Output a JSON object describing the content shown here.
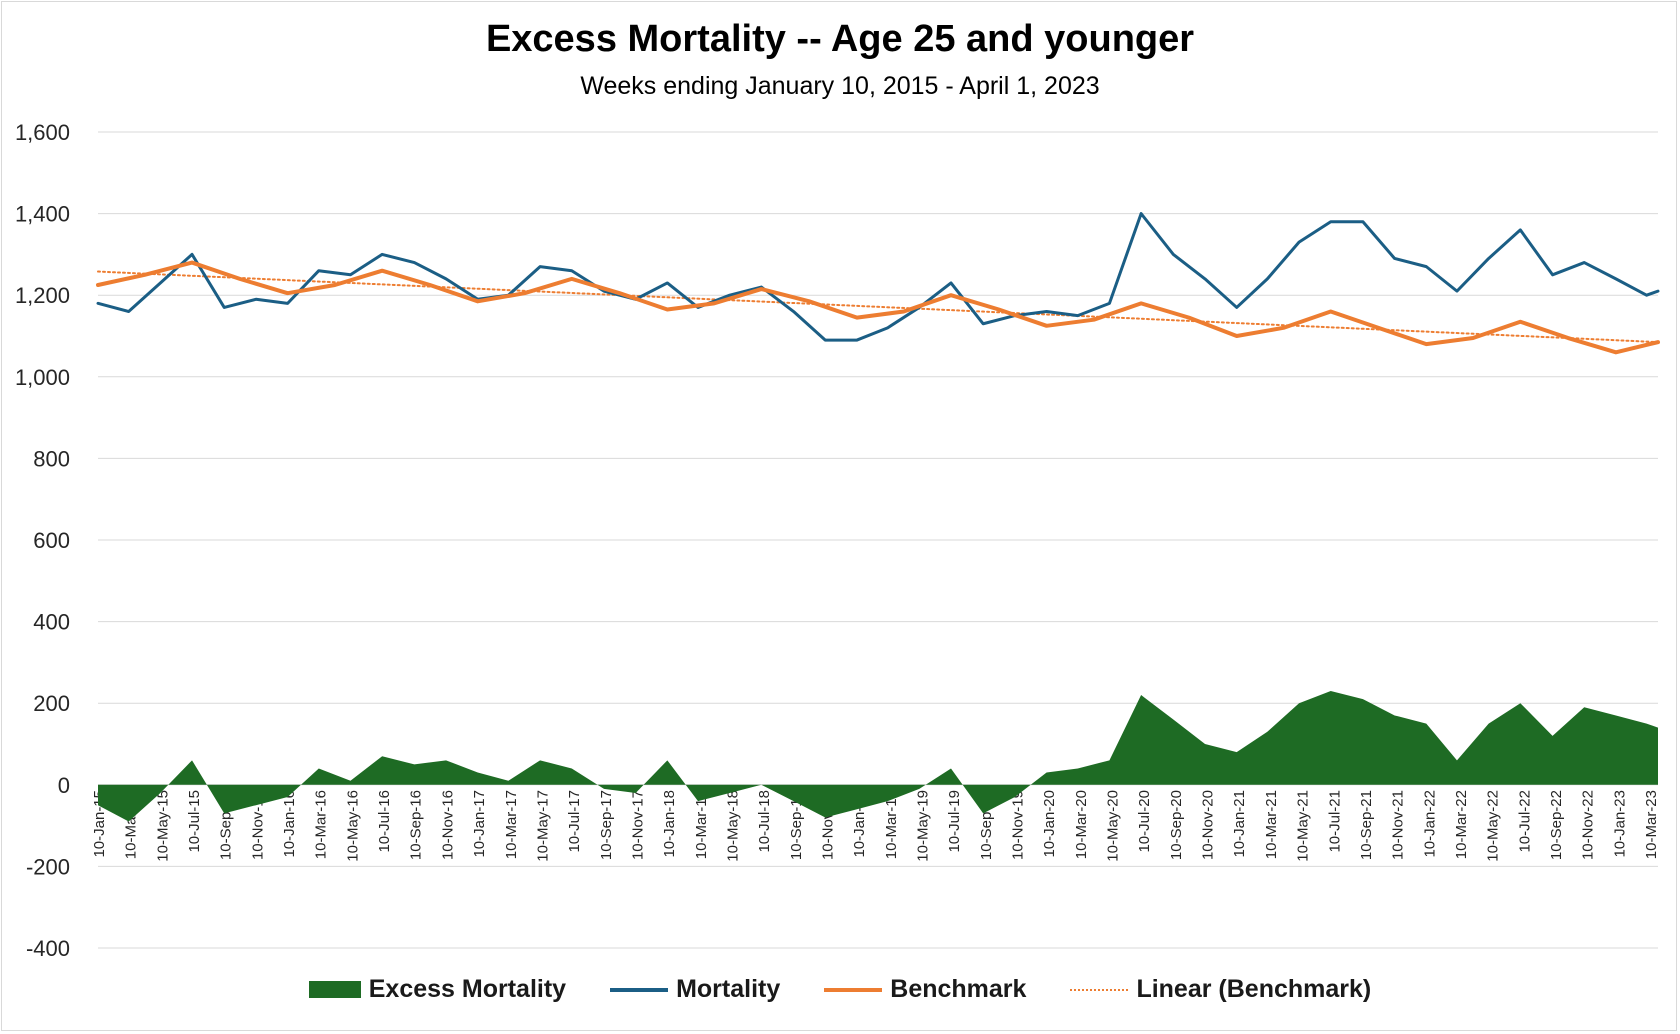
{
  "chart_data": {
    "type": "line",
    "title": "Excess Mortality -- Age 25 and younger",
    "subtitle": "Weeks ending January 10, 2015 - April 1, 2023",
    "ylim": [
      -400,
      1600
    ],
    "y_ticks": [
      "1,600",
      "1,400",
      "1,200",
      "1,000",
      "800",
      "600",
      "400",
      "200",
      "0",
      "-200",
      "-400"
    ],
    "y_tick_values": [
      1600,
      1400,
      1200,
      1000,
      800,
      600,
      400,
      200,
      0,
      -200,
      -400
    ],
    "grid": true,
    "legend_position": "bottom",
    "x_tick_labels": [
      "10-Jan-15",
      "10-Mar-15",
      "10-May-15",
      "10-Jul-15",
      "10-Sep-15",
      "10-Nov-15",
      "10-Jan-16",
      "10-Mar-16",
      "10-May-16",
      "10-Jul-16",
      "10-Sep-16",
      "10-Nov-16",
      "10-Jan-17",
      "10-Mar-17",
      "10-May-17",
      "10-Jul-17",
      "10-Sep-17",
      "10-Nov-17",
      "10-Jan-18",
      "10-Mar-18",
      "10-May-18",
      "10-Jul-18",
      "10-Sep-18",
      "10-Nov-18",
      "10-Jan-19",
      "10-Mar-19",
      "10-May-19",
      "10-Jul-19",
      "10-Sep-19",
      "10-Nov-19",
      "10-Jan-20",
      "10-Mar-20",
      "10-May-20",
      "10-Jul-20",
      "10-Sep-20",
      "10-Nov-20",
      "10-Jan-21",
      "10-Mar-21",
      "10-May-21",
      "10-Jul-21",
      "10-Sep-21",
      "10-Nov-21",
      "10-Jan-22",
      "10-Mar-22",
      "10-May-22",
      "10-Jul-22",
      "10-Sep-22",
      "10-Nov-22",
      "10-Jan-23",
      "10-Mar-23"
    ],
    "x_range": [
      "2015-01-10",
      "2023-04-01"
    ],
    "series": [
      {
        "name": "Mortality",
        "color": "#1b5e85",
        "x": [
          "2015-01-10",
          "2015-03-10",
          "2015-05-10",
          "2015-07-10",
          "2015-09-10",
          "2015-11-10",
          "2016-01-10",
          "2016-03-10",
          "2016-05-10",
          "2016-07-10",
          "2016-09-10",
          "2016-11-10",
          "2017-01-10",
          "2017-03-10",
          "2017-05-10",
          "2017-07-10",
          "2017-09-10",
          "2017-11-10",
          "2018-01-10",
          "2018-03-10",
          "2018-05-10",
          "2018-07-10",
          "2018-09-10",
          "2018-11-10",
          "2019-01-10",
          "2019-03-10",
          "2019-05-10",
          "2019-07-10",
          "2019-09-10",
          "2019-11-10",
          "2020-01-10",
          "2020-03-10",
          "2020-05-10",
          "2020-07-10",
          "2020-09-10",
          "2020-11-10",
          "2021-01-10",
          "2021-03-10",
          "2021-05-10",
          "2021-07-10",
          "2021-09-10",
          "2021-11-10",
          "2022-01-10",
          "2022-03-10",
          "2022-05-10",
          "2022-07-10",
          "2022-09-10",
          "2022-11-10",
          "2023-01-10",
          "2023-03-10",
          "2023-04-01"
        ],
        "values": [
          1180,
          1160,
          1230,
          1300,
          1170,
          1190,
          1180,
          1260,
          1250,
          1300,
          1280,
          1240,
          1190,
          1200,
          1270,
          1260,
          1210,
          1190,
          1230,
          1170,
          1200,
          1220,
          1160,
          1090,
          1090,
          1120,
          1170,
          1230,
          1130,
          1150,
          1160,
          1150,
          1180,
          1400,
          1300,
          1240,
          1170,
          1240,
          1330,
          1380,
          1380,
          1290,
          1270,
          1210,
          1290,
          1360,
          1250,
          1280,
          1240,
          1200,
          1210
        ]
      },
      {
        "name": "Benchmark",
        "color": "#ed7d31",
        "x": [
          "2015-01-10",
          "2015-04-10",
          "2015-07-10",
          "2015-10-10",
          "2016-01-10",
          "2016-04-10",
          "2016-07-10",
          "2016-10-10",
          "2017-01-10",
          "2017-04-10",
          "2017-07-10",
          "2017-10-10",
          "2018-01-10",
          "2018-04-10",
          "2018-07-10",
          "2018-10-10",
          "2019-01-10",
          "2019-04-10",
          "2019-07-10",
          "2019-10-10",
          "2020-01-10",
          "2020-04-10",
          "2020-07-10",
          "2020-10-10",
          "2021-01-10",
          "2021-04-10",
          "2021-07-10",
          "2021-10-10",
          "2022-01-10",
          "2022-04-10",
          "2022-07-10",
          "2022-10-10",
          "2023-01-10",
          "2023-04-01"
        ],
        "values": [
          1225,
          1250,
          1280,
          1240,
          1205,
          1225,
          1260,
          1225,
          1185,
          1205,
          1240,
          1205,
          1165,
          1180,
          1215,
          1185,
          1145,
          1160,
          1200,
          1165,
          1125,
          1140,
          1180,
          1145,
          1100,
          1120,
          1160,
          1120,
          1080,
          1095,
          1135,
          1095,
          1060,
          1085
        ]
      },
      {
        "name": "Linear (Benchmark)",
        "color": "#ed7d31",
        "x": [
          "2015-01-10",
          "2023-04-01"
        ],
        "values": [
          1258,
          1085
        ]
      },
      {
        "name": "Excess Mortality",
        "color": "#1e6b24",
        "x": [
          "2015-01-10",
          "2015-03-10",
          "2015-05-10",
          "2015-07-10",
          "2015-09-10",
          "2015-11-10",
          "2016-01-10",
          "2016-03-10",
          "2016-05-10",
          "2016-07-10",
          "2016-09-10",
          "2016-11-10",
          "2017-01-10",
          "2017-03-10",
          "2017-05-10",
          "2017-07-10",
          "2017-09-10",
          "2017-11-10",
          "2018-01-10",
          "2018-03-10",
          "2018-05-10",
          "2018-07-10",
          "2018-09-10",
          "2018-11-10",
          "2019-01-10",
          "2019-03-10",
          "2019-05-10",
          "2019-07-10",
          "2019-09-10",
          "2019-11-10",
          "2020-01-10",
          "2020-03-10",
          "2020-05-10",
          "2020-07-10",
          "2020-09-10",
          "2020-11-10",
          "2021-01-10",
          "2021-03-10",
          "2021-05-10",
          "2021-07-10",
          "2021-09-10",
          "2021-11-10",
          "2022-01-10",
          "2022-03-10",
          "2022-05-10",
          "2022-07-10",
          "2022-09-10",
          "2022-11-10",
          "2023-01-10",
          "2023-03-10",
          "2023-04-01"
        ],
        "values": [
          -50,
          -90,
          -20,
          60,
          -70,
          -50,
          -30,
          40,
          10,
          70,
          50,
          60,
          30,
          10,
          60,
          40,
          -10,
          -20,
          60,
          -40,
          -20,
          0,
          -40,
          -80,
          -60,
          -40,
          -10,
          40,
          -70,
          -30,
          30,
          40,
          60,
          220,
          160,
          100,
          80,
          130,
          200,
          230,
          210,
          170,
          150,
          60,
          150,
          200,
          120,
          190,
          170,
          150,
          140
        ]
      }
    ]
  },
  "legend": {
    "excess": "Excess Mortality",
    "mortality": "Mortality",
    "benchmark": "Benchmark",
    "linear": "Linear (Benchmark)"
  }
}
